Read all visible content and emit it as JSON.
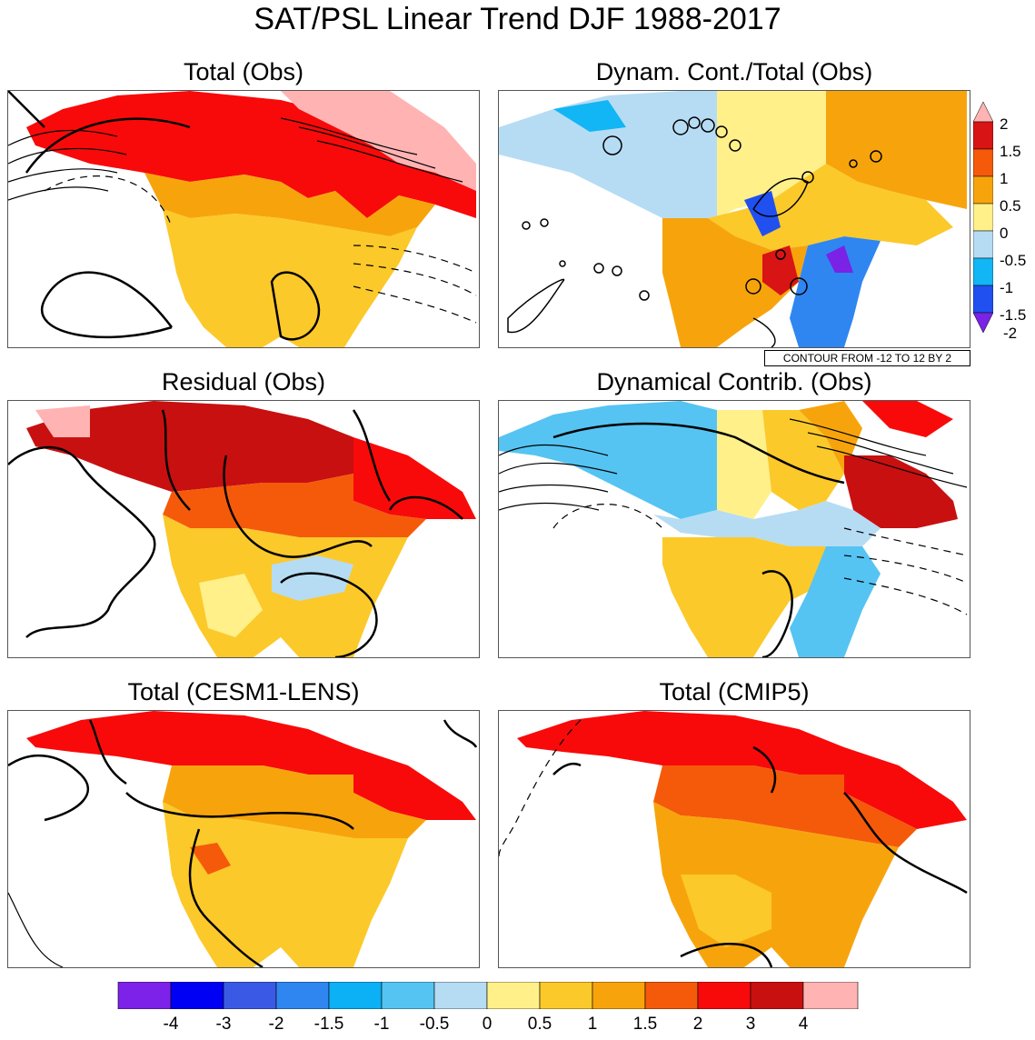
{
  "title": "SAT/PSL Linear Trend DJF 1988-2017",
  "panels": [
    {
      "title": "Total (Obs)"
    },
    {
      "title": "Dynam. Cont./Total (Obs)"
    },
    {
      "title": "Residual (Obs)"
    },
    {
      "title": "Dynamical Contrib. (Obs)"
    },
    {
      "title": "Total (CESM1-LENS)"
    },
    {
      "title": "Total (CMIP5)"
    }
  ],
  "contour_note": "CONTOUR FROM -12 TO 12 BY 2",
  "ratio_colorbar": {
    "labels": [
      "2",
      "1.5",
      "1",
      "0.5",
      "0",
      "-0.5",
      "-1",
      "-1.5",
      "-2"
    ],
    "colors": [
      "#ffb3b3",
      "#d81414",
      "#f55a0a",
      "#f7a40c",
      "#fff08a",
      "#b6dcf4",
      "#12b6f4",
      "#2050f0",
      "#7a22e6"
    ]
  },
  "trend_colorbar": {
    "labels": [
      "-4",
      "-3",
      "-2",
      "-1.5",
      "-1",
      "-0.5",
      "0",
      "0.5",
      "1",
      "1.5",
      "2",
      "3",
      "4"
    ],
    "colors": [
      "#7d22e8",
      "#0000f5",
      "#3a5ae6",
      "#2f86f0",
      "#0bb0f5",
      "#55c4f2",
      "#b6dcf4",
      "#fff08a",
      "#fcc92a",
      "#f7a40c",
      "#f55a0a",
      "#f80a0a",
      "#c81010",
      "#ffb3b3"
    ]
  }
}
